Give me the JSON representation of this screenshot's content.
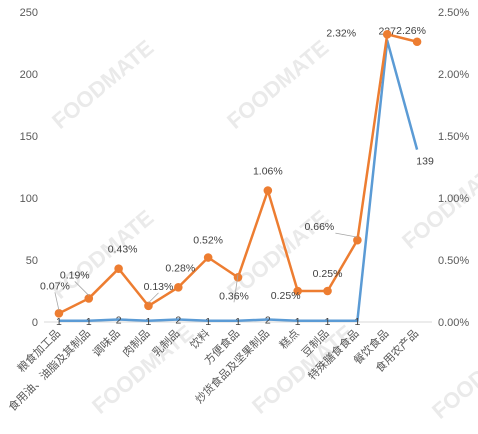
{
  "chart_data": {
    "type": "line",
    "title": "",
    "xlabel": "",
    "ylabel": "",
    "categories": [
      "粮食加工品",
      "食用油、油脂及其制品",
      "调味品",
      "肉制品",
      "乳制品",
      "饮料",
      "方便食品",
      "炒货食品及坚果制品",
      "糕点",
      "豆制品",
      "特殊膳食食品",
      "餐饮食品",
      "食用农产品"
    ],
    "series": [
      {
        "axis": "left",
        "color": "#5B9BD5",
        "values": [
          1,
          1,
          2,
          1,
          2,
          1,
          1,
          2,
          1,
          1,
          1,
          227,
          139
        ],
        "labels": [
          "1",
          "1",
          "2",
          "1",
          "2",
          "1",
          "1",
          "2",
          "1",
          "1",
          "1",
          "227",
          "139"
        ]
      },
      {
        "axis": "right",
        "color": "#ED7D31",
        "values": [
          0.07,
          0.19,
          0.43,
          0.13,
          0.28,
          0.52,
          0.36,
          1.06,
          0.25,
          0.25,
          0.66,
          2.32,
          2.26
        ],
        "labels": [
          "0.07%",
          "0.19%",
          "0.43%",
          "0.13%",
          "0.28%",
          "0.52%",
          "0.36%",
          "1.06%",
          "0.25%",
          "0.25%",
          "0.66%",
          "2.32%",
          "2.26%"
        ]
      }
    ],
    "y_left": {
      "ylim": [
        0,
        250
      ],
      "ticks": [
        "0",
        "50",
        "100",
        "150",
        "200",
        "250"
      ]
    },
    "y_right": {
      "ylim": [
        0,
        2.5
      ],
      "ticks": [
        "0.00%",
        "0.50%",
        "1.00%",
        "1.50%",
        "2.00%",
        "2.50%"
      ]
    },
    "grid": false,
    "legend": "none"
  },
  "watermark": "FOODMATE"
}
